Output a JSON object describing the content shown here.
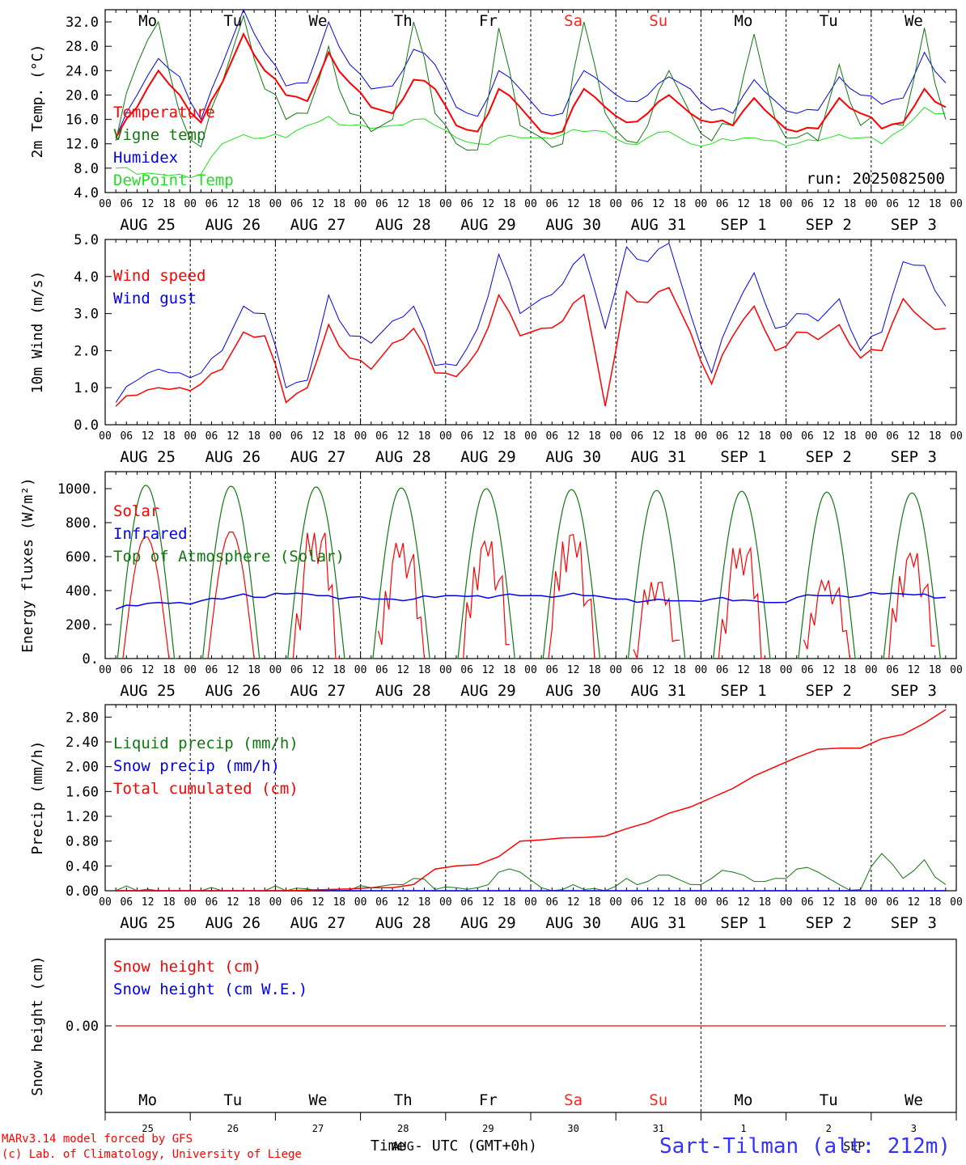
{
  "footer": {
    "credit_line1": "MARv3.14 model forced by GFS",
    "credit_line2": "(c) Lab. of Climatology, University of Liege",
    "xaxis_title": "Time - UTC (GMT+0h)",
    "station": "Sart-Tilman (alt: 212m)"
  },
  "colors": {
    "red": "#ff0000",
    "green": "#117711",
    "blue": "#0000ee",
    "light_green": "#22dd22",
    "weekend": "#ff2222",
    "black": "#000000"
  },
  "days": [
    "Mo",
    "Tu",
    "We",
    "Th",
    "Fr",
    "Sa",
    "Su",
    "Mo",
    "Tu",
    "We"
  ],
  "weekend_days": [
    5,
    6
  ],
  "date_labels": [
    "AUG 25",
    "AUG 26",
    "AUG 27",
    "AUG 28",
    "AUG 29",
    "AUG 30",
    "AUG 31",
    "SEP  1",
    "SEP  2",
    "SEP  3"
  ],
  "hour_ticks": [
    "00",
    "06",
    "12",
    "18"
  ],
  "bottom_day_numbers": [
    "25",
    "26",
    "27",
    "28",
    "29",
    "30",
    "31",
    "1",
    "2",
    "3"
  ],
  "bottom_month_labels": [
    "AUG",
    "SEP"
  ],
  "chart_data": [
    {
      "type": "line",
      "ylabel": "2m Temp. (°C)",
      "ylim": [
        4,
        34
      ],
      "yticks": [
        "4.0",
        "8.0",
        "12.0",
        "16.0",
        "20.0",
        "24.0",
        "28.0",
        "32.0"
      ],
      "annotation": "run: 2025082500",
      "x_units": "hours since AUG 25 00 UTC (6-hourly)",
      "series": [
        {
          "name": "Temperature",
          "color": "red",
          "values": [
            13,
            18,
            24,
            20,
            15.5,
            22,
            30,
            24,
            20,
            19,
            27,
            22,
            18,
            17,
            22.5,
            21,
            15,
            14,
            21,
            18,
            14,
            14,
            21,
            18,
            15.5,
            17,
            20,
            17,
            15.5,
            15,
            19.5,
            16,
            14,
            14.5,
            19.5,
            17,
            14.5,
            15.5,
            21,
            18
          ]
        },
        {
          "name": "Vigne temp",
          "color": "green",
          "values": [
            12.5,
            25,
            32,
            17,
            11.5,
            22,
            33,
            21,
            16,
            17,
            28,
            17,
            14,
            16,
            32,
            17,
            12,
            11,
            31,
            15,
            13,
            12,
            32,
            17,
            12.5,
            15,
            24,
            17,
            12.5,
            15,
            30,
            16,
            13,
            12.5,
            25,
            15,
            14.5,
            15,
            31,
            16
          ]
        },
        {
          "name": "Humidex",
          "color": "blue",
          "values": [
            13,
            20,
            26,
            23,
            16,
            25,
            34,
            27,
            21.5,
            22,
            32,
            25,
            21,
            21.5,
            27.5,
            25,
            18,
            16.5,
            24,
            21,
            17,
            17,
            24,
            21.5,
            19,
            20,
            23,
            21,
            17.5,
            17,
            22.5,
            19,
            17,
            17.5,
            23,
            20,
            18.5,
            19.5,
            27,
            22
          ]
        },
        {
          "name": "DewPoint Temp",
          "color": "light_green",
          "values": [
            8,
            7,
            7,
            7,
            7,
            12,
            13.5,
            13,
            13,
            15,
            16.5,
            15,
            14.5,
            15,
            16,
            15,
            13,
            12,
            13,
            13,
            13,
            13.5,
            14,
            14,
            12,
            13,
            14,
            12,
            12,
            12.5,
            13,
            12.5,
            12,
            12.5,
            13.5,
            13,
            12,
            14.5,
            18,
            17
          ]
        }
      ]
    },
    {
      "type": "line",
      "ylabel": "10m Wind (m/s)",
      "ylim": [
        0,
        5
      ],
      "yticks": [
        "0.0",
        "1.0",
        "2.0",
        "3.0",
        "4.0",
        "5.0"
      ],
      "series": [
        {
          "name": "Wind speed",
          "color": "red",
          "values": [
            0.5,
            0.8,
            1.0,
            1.0,
            1.1,
            1.5,
            2.5,
            2.4,
            0.6,
            1.0,
            2.7,
            1.8,
            1.5,
            2.2,
            2.6,
            1.4,
            1.3,
            2.0,
            3.5,
            2.4,
            2.6,
            2.8,
            3.5,
            0.5,
            3.6,
            3.3,
            3.7,
            2.5,
            1.1,
            2.4,
            3.2,
            2.0,
            2.5,
            2.3,
            2.7,
            1.8,
            2.0,
            3.4,
            2.8,
            2.6
          ]
        },
        {
          "name": "Wind gust",
          "color": "blue",
          "values": [
            0.6,
            1.2,
            1.5,
            1.4,
            1.4,
            2.0,
            3.2,
            3.0,
            1.0,
            1.2,
            3.5,
            2.4,
            2.2,
            2.8,
            3.2,
            1.6,
            1.6,
            2.6,
            4.6,
            3.0,
            3.4,
            3.8,
            4.6,
            2.6,
            4.8,
            4.4,
            4.9,
            3.0,
            1.4,
            3.0,
            4.1,
            2.6,
            3.0,
            2.8,
            3.4,
            2.0,
            2.5,
            4.4,
            4.3,
            3.2
          ]
        }
      ]
    },
    {
      "type": "line",
      "ylabel": "Energy fluxes (W/m²)",
      "ylim": [
        0,
        1100
      ],
      "yticks": [
        "0.",
        "200.",
        "400.",
        "600.",
        "800.",
        "1000."
      ],
      "series": [
        {
          "name": "Solar",
          "color": "red",
          "peaks": [
            720,
            750,
            740,
            680,
            690,
            730,
            450,
            650,
            460,
            620
          ]
        },
        {
          "name": "Infrared",
          "color": "blue",
          "values": [
            290,
            310,
            330,
            330,
            340,
            350,
            380,
            360,
            380,
            380,
            370,
            360,
            350,
            350,
            350,
            360,
            370,
            370,
            370,
            370,
            370,
            370,
            370,
            360,
            350,
            340,
            340,
            340,
            350,
            340,
            340,
            330,
            360,
            370,
            370,
            370,
            380,
            380,
            380,
            360
          ]
        },
        {
          "name": "Top of Atmosphere (Solar)",
          "color": "green",
          "peaks": [
            1020,
            1015,
            1010,
            1005,
            1000,
            995,
            990,
            985,
            980,
            975
          ]
        }
      ]
    },
    {
      "type": "line",
      "ylabel": "Precip (mm/h)",
      "ylim": [
        0,
        3
      ],
      "yticks": [
        "0.00",
        "0.40",
        "0.80",
        "1.20",
        "1.60",
        "2.00",
        "2.40",
        "2.80"
      ],
      "series": [
        {
          "name": "Liquid precip (mm/h)",
          "color": "green",
          "values": [
            0,
            0,
            0,
            0,
            0,
            0,
            0,
            0,
            0,
            0.03,
            0.02,
            0.01,
            0.05,
            0.1,
            0.2,
            0.02,
            0.05,
            0.05,
            0.3,
            0.3,
            0.05,
            0.02,
            0.02,
            0,
            0.2,
            0.15,
            0.25,
            0.1,
            0.2,
            0.3,
            0.15,
            0.2,
            0.35,
            0.3,
            0.1,
            0.02,
            0.6,
            0.2,
            0.5,
            0.1
          ]
        },
        {
          "name": "Snow precip (mm/h)",
          "color": "blue",
          "values": [
            0,
            0,
            0,
            0,
            0,
            0,
            0,
            0,
            0,
            0,
            0,
            0,
            0,
            0,
            0,
            0,
            0,
            0,
            0,
            0,
            0,
            0,
            0,
            0,
            0,
            0,
            0,
            0,
            0,
            0,
            0,
            0,
            0,
            0,
            0,
            0,
            0,
            0,
            0,
            0
          ]
        },
        {
          "name": "Total cumulated (cm)",
          "color": "red",
          "values": [
            0,
            0,
            0,
            0,
            0,
            0,
            0,
            0,
            0,
            0.01,
            0.02,
            0.03,
            0.05,
            0.05,
            0.1,
            0.35,
            0.4,
            0.42,
            0.55,
            0.8,
            0.82,
            0.85,
            0.86,
            0.88,
            1.0,
            1.1,
            1.25,
            1.35,
            1.5,
            1.65,
            1.85,
            2.0,
            2.15,
            2.28,
            2.3,
            2.3,
            2.45,
            2.52,
            2.7,
            2.92
          ]
        }
      ]
    },
    {
      "type": "line",
      "ylabel": "Snow height (cm)",
      "ylim": [
        -1,
        1
      ],
      "yticks": [
        "0.00"
      ],
      "series": [
        {
          "name": "Snow height (cm)",
          "color": "red",
          "values": [
            0,
            0,
            0,
            0,
            0,
            0,
            0,
            0,
            0,
            0,
            0,
            0,
            0,
            0,
            0,
            0,
            0,
            0,
            0,
            0,
            0,
            0,
            0,
            0,
            0,
            0,
            0,
            0,
            0,
            0,
            0,
            0,
            0,
            0,
            0,
            0,
            0,
            0,
            0,
            0
          ]
        },
        {
          "name": "Snow height (cm W.E.)",
          "color": "blue",
          "values": [
            0,
            0,
            0,
            0,
            0,
            0,
            0,
            0,
            0,
            0,
            0,
            0,
            0,
            0,
            0,
            0,
            0,
            0,
            0,
            0,
            0,
            0,
            0,
            0,
            0,
            0,
            0,
            0,
            0,
            0,
            0,
            0,
            0,
            0,
            0,
            0,
            0,
            0,
            0,
            0
          ]
        }
      ]
    }
  ]
}
